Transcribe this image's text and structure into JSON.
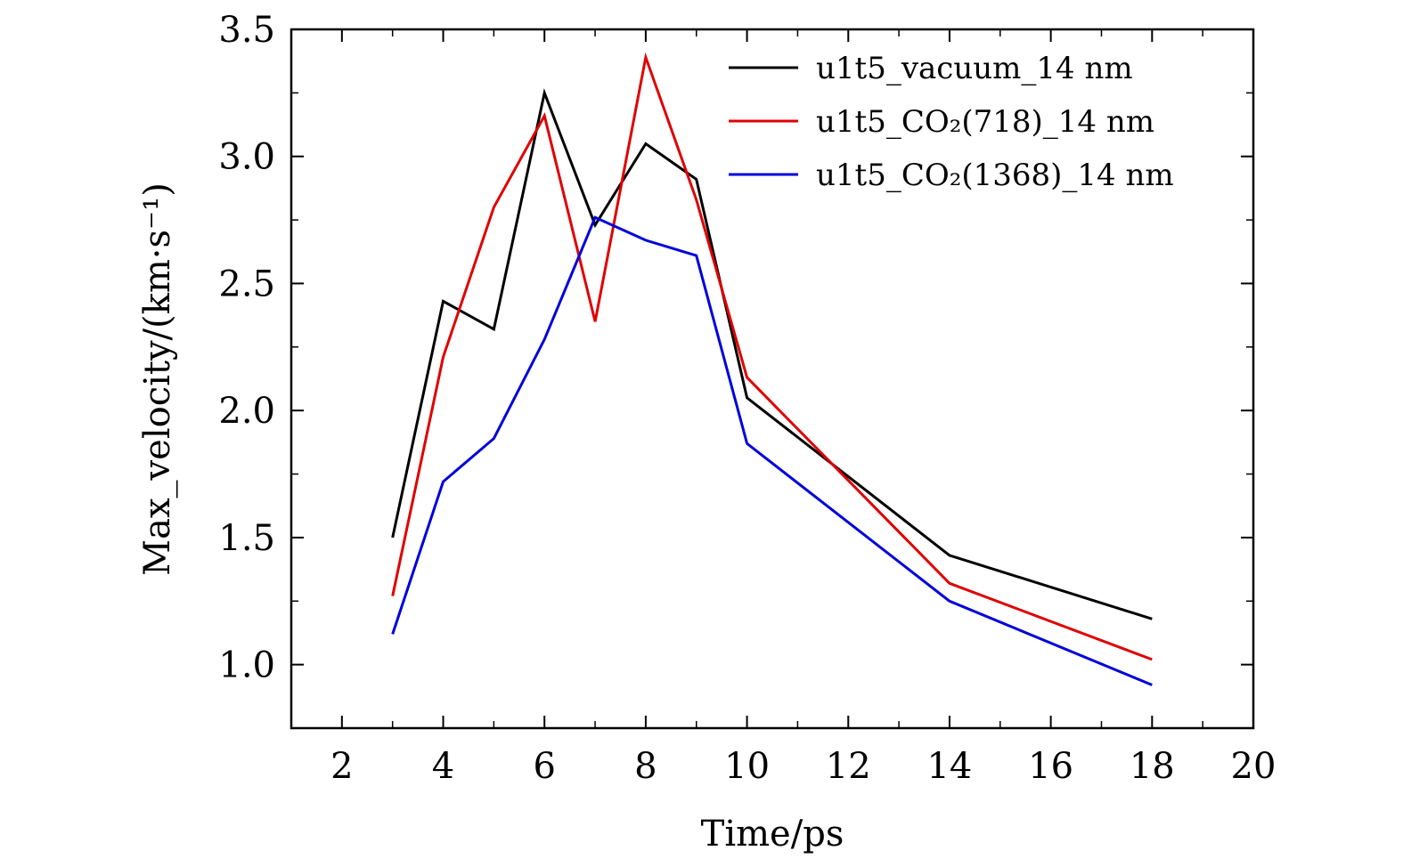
{
  "chart_data": {
    "type": "line",
    "xlabel": "Time/ps",
    "ylabel": "Max_velocity/(km·s⁻¹)",
    "xlim": [
      1,
      20
    ],
    "ylim": [
      0.75,
      3.5
    ],
    "xticks": [
      "2",
      "4",
      "6",
      "8",
      "10",
      "12",
      "14",
      "16",
      "18",
      "20"
    ],
    "yticks": [
      "1.0",
      "1.5",
      "2.0",
      "2.5",
      "3.0",
      "3.5"
    ],
    "legend_position": "top-right",
    "series": [
      {
        "name": "u1t5_vacuum_14 nm",
        "color": "#000000",
        "x": [
          3,
          4,
          5,
          6,
          7,
          8,
          9,
          10,
          14,
          18
        ],
        "y": [
          1.5,
          2.43,
          2.32,
          3.25,
          2.73,
          3.05,
          2.91,
          2.05,
          1.43,
          1.18
        ]
      },
      {
        "name": "u1t5_CO₂(718)_14 nm",
        "color": "#e00000",
        "x": [
          3,
          4,
          5,
          6,
          7,
          8,
          9,
          10,
          14,
          18
        ],
        "y": [
          1.27,
          2.21,
          2.8,
          3.16,
          2.35,
          3.39,
          2.83,
          2.13,
          1.32,
          1.02
        ]
      },
      {
        "name": "u1t5_CO₂(1368)_14 nm",
        "color": "#0000dd",
        "x": [
          3,
          4,
          5,
          6,
          7,
          8,
          9,
          10,
          14,
          18
        ],
        "y": [
          1.12,
          1.72,
          1.89,
          2.28,
          2.76,
          2.67,
          2.61,
          1.87,
          1.25,
          0.92
        ]
      }
    ]
  }
}
